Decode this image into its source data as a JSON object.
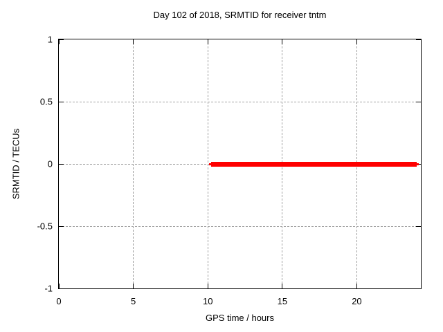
{
  "chart_data": {
    "type": "line",
    "title": "Day 102 of 2018, SRMTID for receiver tntm",
    "xlabel": "GPS time / hours",
    "ylabel": "SRMTID / TECUs",
    "xlim": [
      0,
      24.3
    ],
    "ylim": [
      -1,
      1
    ],
    "xticks": [
      {
        "value": 0,
        "label": "0"
      },
      {
        "value": 5,
        "label": "5"
      },
      {
        "value": 10,
        "label": "10"
      },
      {
        "value": 15,
        "label": "15"
      },
      {
        "value": 20,
        "label": "20"
      }
    ],
    "yticks": [
      {
        "value": -1,
        "label": "-1"
      },
      {
        "value": -0.5,
        "label": "-0.5"
      },
      {
        "value": 0,
        "label": "0"
      },
      {
        "value": 0.5,
        "label": "0.5"
      },
      {
        "value": 1,
        "label": "1"
      }
    ],
    "grid": true,
    "grid_x_values": [
      5,
      10,
      15,
      20
    ],
    "grid_y_values": [
      -0.5,
      0,
      0.5
    ],
    "legend_position": "none",
    "series": [
      {
        "name": "SRMTID",
        "y_value": 0,
        "x_start": 10.2,
        "x_end": 24.0,
        "thickness_px": 7,
        "color": "#ff0000"
      }
    ],
    "colors": {
      "background": "#ffffff",
      "axis": "#000000",
      "grid": "#a0a0a0",
      "series": "#ff0000"
    }
  }
}
